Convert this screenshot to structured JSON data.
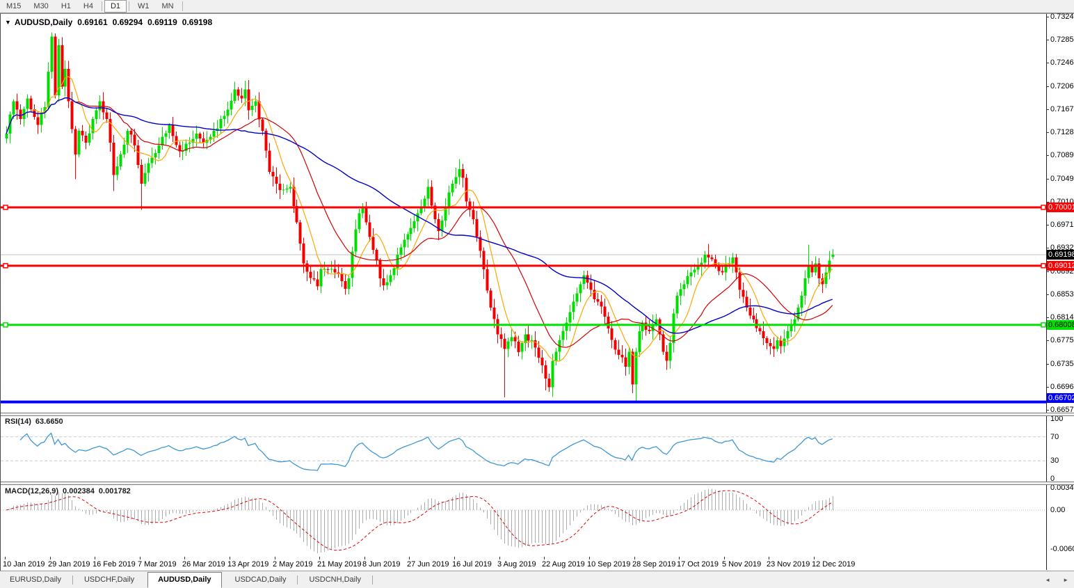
{
  "toolbar": {
    "buttons": [
      "M15",
      "M30",
      "H1",
      "H4",
      "D1",
      "W1",
      "MN"
    ],
    "active": "D1"
  },
  "title": {
    "symbol": "AUDUSD,Daily",
    "open": "0.69161",
    "high": "0.69294",
    "low": "0.69119",
    "close": "0.69198"
  },
  "price_axis": {
    "ticks": [
      "0.73240",
      "0.72850",
      "0.72460",
      "0.72060",
      "0.71670",
      "0.71280",
      "0.70890",
      "0.70490",
      "0.70100",
      "0.69710",
      "0.69320",
      "0.68920",
      "0.68530",
      "0.68140",
      "0.67750",
      "0.67350",
      "0.66960",
      "0.66570"
    ]
  },
  "rsi_panel": {
    "name": "RSI(14)",
    "value": "63.6650",
    "axis": [
      "100",
      "70",
      "30",
      "0"
    ],
    "levels": [
      70,
      30
    ]
  },
  "macd_panel": {
    "name": "MACD(12,26,9)",
    "value_main": "0.002384",
    "value_signal": "0.001782",
    "axis_top": "0.0034210",
    "axis_zero": "0.00",
    "axis_bottom": "-0.0060690"
  },
  "dates": [
    "10 Jan 2019",
    "29 Jan 2019",
    "16 Feb 2019",
    "7 Mar 2019",
    "26 Mar 2019",
    "13 Apr 2019",
    "2 May 2019",
    "21 May 2019",
    "8 Jun 2019",
    "27 Jun 2019",
    "16 Jul 2019",
    "3 Aug 2019",
    "22 Aug 2019",
    "10 Sep 2019",
    "28 Sep 2019",
    "17 Oct 2019",
    "5 Nov 2019",
    "23 Nov 2019",
    "12 Dec 2019"
  ],
  "tabbar": {
    "tabs": [
      "EURUSD,Daily",
      "USDCHF,Daily",
      "AUDUSD,Daily",
      "USDCAD,Daily",
      "USDCNH,Daily"
    ],
    "active": "AUDUSD,Daily",
    "scroll_left_icon": "◄",
    "scroll_right_icon": "►"
  },
  "chart_data": {
    "type": "candlestick",
    "symbol": "AUDUSD",
    "timeframe": "Daily",
    "candle_count": 240,
    "price_at_pane_top": 0.732578,
    "price_at_pane_bottom": 0.6652,
    "last_candle": {
      "open": 0.69161,
      "high": 0.69294,
      "low": 0.69119,
      "close": 0.69198
    },
    "close_anchors": [
      [
        0,
        0.7125
      ],
      [
        2,
        0.718
      ],
      [
        4,
        0.715
      ],
      [
        6,
        0.7185
      ],
      [
        9,
        0.714
      ],
      [
        11,
        0.717
      ],
      [
        12,
        0.723
      ],
      [
        13,
        0.729
      ],
      [
        14,
        0.719
      ],
      [
        15,
        0.7275
      ],
      [
        16,
        0.7205
      ],
      [
        17,
        0.7235
      ],
      [
        18,
        0.718
      ],
      [
        20,
        0.709
      ],
      [
        21,
        0.713
      ],
      [
        23,
        0.711
      ],
      [
        25,
        0.715
      ],
      [
        27,
        0.718
      ],
      [
        29,
        0.715
      ],
      [
        30,
        0.711
      ],
      [
        31,
        0.7055
      ],
      [
        33,
        0.709
      ],
      [
        35,
        0.713
      ],
      [
        37,
        0.7105
      ],
      [
        39,
        0.704
      ],
      [
        41,
        0.7075
      ],
      [
        44,
        0.7105
      ],
      [
        47,
        0.714
      ],
      [
        50,
        0.7095
      ],
      [
        53,
        0.711
      ],
      [
        55,
        0.7125
      ],
      [
        57,
        0.711
      ],
      [
        60,
        0.713
      ],
      [
        63,
        0.7155
      ],
      [
        66,
        0.72
      ],
      [
        68,
        0.7185
      ],
      [
        69,
        0.72
      ],
      [
        70,
        0.7165
      ],
      [
        72,
        0.718
      ],
      [
        74,
        0.713
      ],
      [
        76,
        0.706
      ],
      [
        78,
        0.704
      ],
      [
        80,
        0.703
      ],
      [
        82,
        0.7035
      ],
      [
        84,
        0.6975
      ],
      [
        86,
        0.6905
      ],
      [
        88,
        0.688
      ],
      [
        90,
        0.6866
      ],
      [
        91,
        0.6895
      ],
      [
        93,
        0.6895
      ],
      [
        95,
        0.689
      ],
      [
        97,
        0.6875
      ],
      [
        98,
        0.6862
      ],
      [
        99,
        0.688
      ],
      [
        100,
        0.6925
      ],
      [
        102,
        0.699
      ],
      [
        103,
        0.7
      ],
      [
        105,
        0.695
      ],
      [
        107,
        0.691
      ],
      [
        108,
        0.688
      ],
      [
        109,
        0.6868
      ],
      [
        111,
        0.6885
      ],
      [
        113,
        0.692
      ],
      [
        115,
        0.6945
      ],
      [
        117,
        0.6965
      ],
      [
        119,
        0.699
      ],
      [
        121,
        0.7015
      ],
      [
        122,
        0.7035
      ],
      [
        124,
        0.698
      ],
      [
        125,
        0.696
      ],
      [
        127,
        0.7
      ],
      [
        129,
        0.704
      ],
      [
        131,
        0.7065
      ],
      [
        132,
        0.705
      ],
      [
        133,
        0.701
      ],
      [
        135,
        0.698
      ],
      [
        136,
        0.695
      ],
      [
        138,
        0.6895
      ],
      [
        140,
        0.683
      ],
      [
        142,
        0.6785
      ],
      [
        144,
        0.676
      ],
      [
        146,
        0.678
      ],
      [
        148,
        0.6755
      ],
      [
        150,
        0.6785
      ],
      [
        152,
        0.6775
      ],
      [
        154,
        0.6745
      ],
      [
        156,
        0.671
      ],
      [
        157,
        0.6695
      ],
      [
        158,
        0.674
      ],
      [
        160,
        0.6775
      ],
      [
        162,
        0.6805
      ],
      [
        164,
        0.684
      ],
      [
        166,
        0.687
      ],
      [
        167,
        0.6885
      ],
      [
        169,
        0.686
      ],
      [
        171,
        0.684
      ],
      [
        173,
        0.6815
      ],
      [
        175,
        0.6775
      ],
      [
        177,
        0.675
      ],
      [
        179,
        0.673
      ],
      [
        180,
        0.6755
      ],
      [
        181,
        0.67
      ],
      [
        182,
        0.6755
      ],
      [
        183,
        0.679
      ],
      [
        184,
        0.6805
      ],
      [
        186,
        0.679
      ],
      [
        188,
        0.681
      ],
      [
        189,
        0.6785
      ],
      [
        190,
        0.6755
      ],
      [
        191,
        0.674
      ],
      [
        192,
        0.677
      ],
      [
        193,
        0.682
      ],
      [
        194,
        0.685
      ],
      [
        196,
        0.687
      ],
      [
        198,
        0.689
      ],
      [
        200,
        0.69
      ],
      [
        202,
        0.692
      ],
      [
        203,
        0.6915
      ],
      [
        205,
        0.69
      ],
      [
        207,
        0.689
      ],
      [
        209,
        0.6905
      ],
      [
        210,
        0.6915
      ],
      [
        211,
        0.689
      ],
      [
        212,
        0.686
      ],
      [
        214,
        0.683
      ],
      [
        216,
        0.681
      ],
      [
        218,
        0.679
      ],
      [
        220,
        0.677
      ],
      [
        222,
        0.676
      ],
      [
        223,
        0.6775
      ],
      [
        224,
        0.6765
      ],
      [
        226,
        0.679
      ],
      [
        228,
        0.681
      ],
      [
        229,
        0.683
      ],
      [
        230,
        0.685
      ],
      [
        231,
        0.688
      ],
      [
        232,
        0.69
      ],
      [
        233,
        0.689
      ],
      [
        234,
        0.6905
      ],
      [
        235,
        0.688
      ],
      [
        236,
        0.687
      ],
      [
        237,
        0.689
      ],
      [
        238,
        0.691
      ],
      [
        239,
        0.69198
      ]
    ],
    "wick_overrides": {
      "13": {
        "high": 0.7297
      },
      "20": {
        "low": 0.7048
      },
      "31": {
        "low": 0.7028
      },
      "39": {
        "low": 0.6996
      },
      "66": {
        "high": 0.7213
      },
      "103": {
        "high": 0.7007
      },
      "109": {
        "low": 0.6859
      },
      "122": {
        "high": 0.7048
      },
      "131": {
        "high": 0.7082
      },
      "144": {
        "low": 0.6678
      },
      "156": {
        "low": 0.669
      },
      "181": {
        "low": 0.6685
      },
      "182": {
        "low": 0.6672
      },
      "203": {
        "high": 0.6938
      },
      "232": {
        "high": 0.6937
      }
    },
    "hlines": [
      {
        "price": 0.70001,
        "color": "#ff0000",
        "thickness": 3,
        "label": "0.70001",
        "label_fg": "#ffffff",
        "squares": true
      },
      {
        "price": 0.69012,
        "color": "#ff0000",
        "thickness": 3,
        "label": "0.69012",
        "label_fg": "#ffffff",
        "squares": true
      },
      {
        "price": 0.68008,
        "color": "#00e000",
        "thickness": 3,
        "label": "0.68008",
        "label_fg": "#000000",
        "squares": true
      },
      {
        "price": 0.66702,
        "color": "#0000ff",
        "thickness": 4,
        "label": "0.66702",
        "label_fg": "#ffffff",
        "squares": false
      }
    ],
    "current_price": {
      "value": 0.69198,
      "label": "0.69198",
      "line_color": "#c0c0c0",
      "box_bg": "#000000",
      "box_fg": "#ffffff"
    },
    "moving_averages": [
      {
        "period": 8,
        "color": "#ffa500",
        "width": 1.2
      },
      {
        "period": 21,
        "color": "#d20000",
        "width": 1.2
      },
      {
        "period": 55,
        "color": "#0000c8",
        "width": 1.4
      }
    ],
    "rsi": {
      "period": 14,
      "color": "#3e97d3",
      "level_color": "#c8c8c8",
      "range": [
        0,
        100
      ],
      "levels": [
        70,
        30
      ],
      "last_value": 63.665
    },
    "macd": {
      "fast": 12,
      "slow": 26,
      "signal": 9,
      "hist_color": "#acacac",
      "signal_color": "#e00000",
      "axis_max": 0.003421,
      "axis_min": -0.006069,
      "last_main": 0.002384,
      "last_signal": 0.001782
    },
    "style": {
      "up": "#00de00",
      "down": "#f20000",
      "background": "#ffffff"
    }
  }
}
